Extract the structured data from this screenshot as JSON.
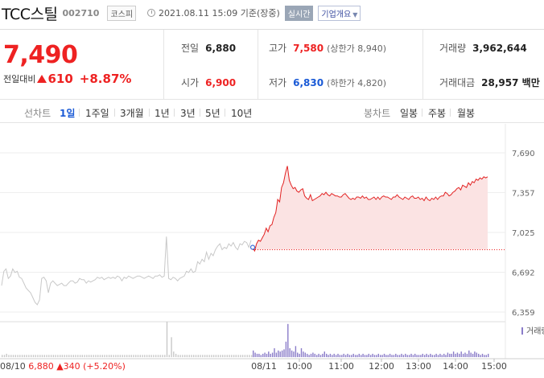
{
  "header": {
    "name": "TCC스틸",
    "code": "002710",
    "market": "코스피",
    "datetime": "2021.08.11 15:09 기준(장중)",
    "realtime_label": "실시간",
    "overview_label": "기업개요"
  },
  "summary": {
    "current_price": "7,490",
    "change_label": "전일대비",
    "change_value": "610",
    "change_rate": "+8.87%",
    "prev_close_label": "전일",
    "prev_close": "6,880",
    "high_label": "고가",
    "high": "7,580",
    "upper_limit": "(상한가 8,940)",
    "volume_label": "거래량",
    "volume": "3,962,644",
    "open_label": "시가",
    "open": "6,900",
    "low_label": "저가",
    "low": "6,830",
    "lower_limit": "(하한가 4,820)",
    "amount_label": "거래대금",
    "amount": "28,957 백만"
  },
  "toolbar": {
    "line_label": "선차트",
    "periods": [
      "1일",
      "1주일",
      "3개월",
      "1년",
      "3년",
      "5년",
      "10년"
    ],
    "candle_label": "봉차트",
    "candles": [
      "일봉",
      "주봉",
      "월봉"
    ]
  },
  "chart_labels": {
    "volume_legend": "거래량",
    "prev_day_info": "08/10 6,880 ▲340 (+5.20%)",
    "date_mark": "08/11"
  },
  "chart_data": {
    "type": "line",
    "yticks": [
      "7,690",
      "7,357",
      "7,025",
      "6,692",
      "6,359"
    ],
    "ylim": [
      6359,
      7690
    ],
    "xticks": [
      "10:00",
      "11:00",
      "12:00",
      "13:00",
      "14:00",
      "15:00"
    ],
    "base_price": 6880,
    "series": [
      {
        "name": "08/10",
        "color": "#c8c8c8",
        "values": [
          6580,
          6700,
          6720,
          6640,
          6660,
          6720,
          6690,
          6700,
          6650,
          6640,
          6600,
          6560,
          6540,
          6520,
          6480,
          6440,
          6420,
          6460,
          6640,
          6650,
          6620,
          6520,
          6600,
          6620,
          6600,
          6580,
          6590,
          6600,
          6580,
          6580,
          6600,
          6620,
          6620,
          6600,
          6610,
          6640,
          6630,
          6630,
          6600,
          6620,
          6610,
          6620,
          6630,
          6650,
          6640,
          6650,
          6630,
          6640,
          6650,
          6640,
          6650,
          6640,
          6660,
          6650,
          6620,
          6650,
          6640,
          6660,
          6650,
          6640,
          6650,
          6660,
          6660,
          6650,
          6640,
          6650,
          6660,
          6650,
          6640,
          6660,
          6660,
          6670,
          6650,
          6660,
          6990,
          6640,
          6630,
          6650,
          6640,
          6620,
          6640,
          6650,
          6660,
          6700,
          6690,
          6720,
          6690,
          6700,
          6780,
          6760,
          6800,
          6780,
          6860,
          6800,
          6850,
          6830,
          6880,
          6910,
          6930,
          6880,
          6900,
          6890,
          6930,
          6910,
          6940,
          6900,
          6880,
          6930,
          6920,
          6950,
          6940,
          6900,
          6960
        ]
      },
      {
        "name": "08/11",
        "color": "#e22222",
        "values": [
          6900,
          6870,
          6930,
          6960,
          6950,
          6980,
          7010,
          7060,
          7030,
          7080,
          7090,
          7150,
          7190,
          7300,
          7280,
          7400,
          7440,
          7520,
          7580,
          7460,
          7420,
          7390,
          7400,
          7370,
          7360,
          7380,
          7390,
          7330,
          7310,
          7300,
          7340,
          7290,
          7300,
          7310,
          7320,
          7330,
          7350,
          7340,
          7360,
          7340,
          7330,
          7350,
          7340,
          7330,
          7330,
          7320,
          7320,
          7340,
          7350,
          7330,
          7310,
          7300,
          7310,
          7300,
          7320,
          7320,
          7310,
          7330,
          7310,
          7320,
          7300,
          7300,
          7310,
          7320,
          7300,
          7320,
          7300,
          7320,
          7330,
          7320,
          7320,
          7310,
          7300,
          7320,
          7320,
          7340,
          7320,
          7310,
          7300,
          7320,
          7310,
          7300,
          7320,
          7330,
          7310,
          7310,
          7320,
          7300,
          7310,
          7290,
          7320,
          7300,
          7290,
          7310,
          7300,
          7320,
          7300,
          7320,
          7330,
          7330,
          7360,
          7350,
          7330,
          7340,
          7360,
          7370,
          7390,
          7400,
          7380,
          7420,
          7410,
          7400,
          7440,
          7420,
          7450,
          7440,
          7470,
          7460,
          7480,
          7470,
          7490,
          7480,
          7490
        ]
      }
    ],
    "volume": {
      "name": "거래량",
      "prev_day": [
        2,
        2,
        3,
        2,
        2,
        2,
        2,
        2,
        2,
        2,
        2,
        2,
        2,
        2,
        2,
        2,
        2,
        2,
        2,
        2,
        2,
        2,
        2,
        2,
        2,
        2,
        2,
        2,
        2,
        2,
        2,
        2,
        2,
        2,
        2,
        2,
        2,
        2,
        2,
        2,
        2,
        2,
        2,
        2,
        2,
        2,
        2,
        2,
        2,
        2,
        2,
        2,
        2,
        2,
        2,
        2,
        2,
        2,
        2,
        2,
        2,
        2,
        2,
        2,
        2,
        2,
        2,
        2,
        2,
        2,
        2,
        2,
        2,
        2,
        32,
        2,
        18,
        5,
        3,
        2,
        2,
        2,
        2,
        2,
        2,
        2,
        2,
        2,
        2,
        2,
        2,
        2,
        2,
        2,
        2,
        2,
        2,
        2,
        2,
        2,
        2,
        2,
        2,
        2,
        2,
        2,
        2,
        2,
        2,
        2,
        2,
        2,
        2
      ],
      "today": [
        6,
        4,
        3,
        3,
        2,
        3,
        4,
        3,
        5,
        3,
        4,
        8,
        4,
        6,
        5,
        6,
        7,
        14,
        30,
        8,
        6,
        5,
        10,
        4,
        3,
        8,
        5,
        4,
        3,
        2,
        3,
        4,
        3,
        2,
        3,
        2,
        3,
        5,
        3,
        2,
        3,
        2,
        3,
        2,
        3,
        2,
        2,
        3,
        2,
        3,
        2,
        2,
        3,
        2,
        2,
        3,
        2,
        3,
        2,
        2,
        3,
        2,
        3,
        2,
        2,
        3,
        2,
        2,
        3,
        2,
        2,
        3,
        2,
        2,
        3,
        2,
        2,
        3,
        2,
        3,
        2,
        2,
        3,
        2,
        3,
        2,
        2,
        2,
        3,
        2,
        3,
        2,
        3,
        2,
        2,
        3,
        2,
        3,
        2,
        3,
        2,
        4,
        3,
        3,
        5,
        3,
        4,
        3,
        5,
        3,
        4,
        3,
        6,
        4,
        3,
        5,
        4,
        3,
        2,
        3,
        2,
        2,
        3
      ]
    }
  }
}
